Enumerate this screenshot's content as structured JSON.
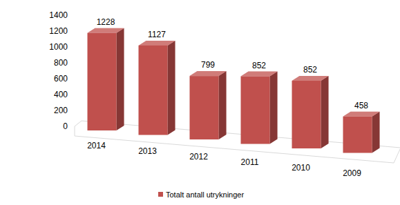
{
  "chart_data": {
    "type": "bar",
    "categories": [
      "2014",
      "2013",
      "2012",
      "2011",
      "2010",
      "2009"
    ],
    "series": [
      {
        "name": "Totalt antall utrykninger",
        "color": "#c0504d",
        "values": [
          1228,
          1127,
          799,
          852,
          852,
          458
        ]
      }
    ],
    "ylim": [
      0,
      1400
    ],
    "yticks": [
      0,
      200,
      400,
      600,
      800,
      1000,
      1200,
      1400
    ],
    "grid": false,
    "data_labels": true,
    "legend": "bottom"
  }
}
